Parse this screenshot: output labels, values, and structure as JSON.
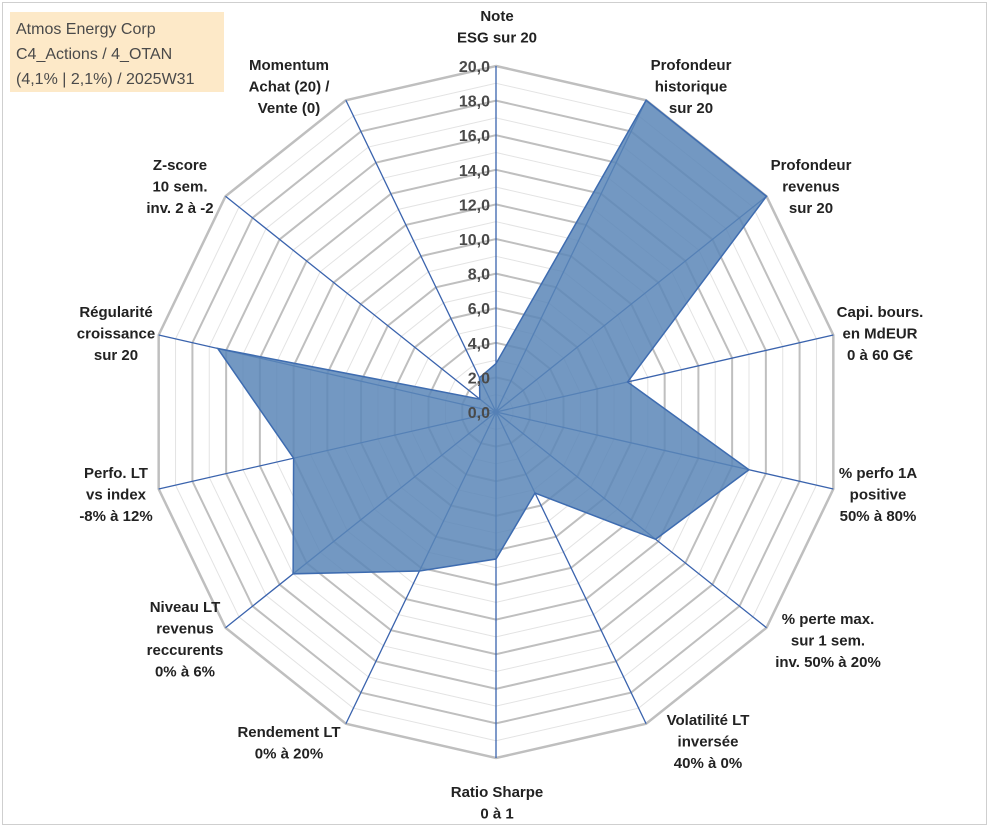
{
  "info_box": {
    "line1": "Atmos Energy Corp",
    "line2": "C4_Actions / 4_OTAN",
    "line3": "(4,1% | 2,1%) / 2025W31"
  },
  "colors": {
    "fill": "#5b86b7",
    "stroke": "#3e6cb0",
    "grid": "#bfbfbf",
    "spoke": "#3a63ad",
    "info_bg": "#fde9c8"
  },
  "chart_data": {
    "type": "radar",
    "rmin": 0,
    "rmax": 20,
    "tick_step": 2,
    "tick_labels": [
      "0,0",
      "2,0",
      "4,0",
      "6,0",
      "8,0",
      "10,0",
      "12,0",
      "14,0",
      "16,0",
      "18,0",
      "20,0"
    ],
    "axes": [
      {
        "label": [
          "Note",
          "ESG sur 20"
        ],
        "value": 2.8
      },
      {
        "label": [
          "Profondeur",
          "historique",
          "sur 20"
        ],
        "value": 20
      },
      {
        "label": [
          "Profondeur",
          "revenus",
          "sur 20"
        ],
        "value": 20
      },
      {
        "label": [
          "Capi. bours.",
          "en MdEUR",
          "0 à 60 G€"
        ],
        "value": 7.8
      },
      {
        "label": [
          "% perfo 1A",
          "positive",
          "50% à 80%"
        ],
        "value": 15.0
      },
      {
        "label": [
          "% perte max.",
          "sur 1 sem.",
          "inv. 50% à 20%"
        ],
        "value": 11.8
      },
      {
        "label": [
          "Volatilité LT",
          "inversée",
          "40% à 0%"
        ],
        "value": 5.2
      },
      {
        "label": [
          "Ratio Sharpe",
          "0 à 1"
        ],
        "value": 8.5
      },
      {
        "label": [
          "Rendement LT",
          "0% à 20%"
        ],
        "value": 10.2
      },
      {
        "label": [
          "Niveau LT",
          "revenus",
          "reccurents",
          "0% à 6%"
        ],
        "value": 15.0
      },
      {
        "label": [
          "Perfo. LT",
          "vs index",
          "-8% à 12%"
        ],
        "value": 12.0
      },
      {
        "label": [
          "Régularité",
          "croissance",
          "sur 20"
        ],
        "value": 16.5
      },
      {
        "label": [
          "Z-score",
          "10 sem.",
          "inv. 2 à -2"
        ],
        "value": 1.2
      },
      {
        "label": [
          "Momentum",
          "Achat (20) /",
          "Vente (0)"
        ],
        "value": 2.2
      }
    ]
  }
}
